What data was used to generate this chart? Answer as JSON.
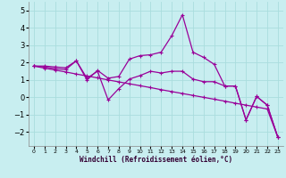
{
  "xlabel": "Windchill (Refroidissement éolien,°C)",
  "background_color": "#c8eef0",
  "line_color": "#990099",
  "grid_color": "#aadddd",
  "xlim": [
    -0.5,
    23.5
  ],
  "ylim": [
    -2.8,
    5.5
  ],
  "xticks": [
    0,
    1,
    2,
    3,
    4,
    5,
    6,
    7,
    8,
    9,
    10,
    11,
    12,
    13,
    14,
    15,
    16,
    17,
    18,
    19,
    20,
    21,
    22,
    23
  ],
  "yticks": [
    -2,
    -1,
    0,
    1,
    2,
    3,
    4,
    5
  ],
  "line1_x": [
    0,
    1,
    2,
    3,
    4,
    5,
    6,
    7,
    8,
    9,
    10,
    11,
    12,
    13,
    14,
    15,
    16,
    17,
    18,
    19,
    20,
    21,
    22,
    23
  ],
  "line1_y": [
    1.8,
    1.8,
    1.75,
    1.7,
    2.1,
    1.0,
    1.55,
    1.1,
    1.2,
    2.2,
    2.4,
    2.45,
    2.6,
    3.55,
    4.75,
    2.6,
    2.3,
    1.9,
    0.65,
    0.65,
    -1.3,
    0.05,
    -0.45,
    -2.3
  ],
  "line2_x": [
    0,
    1,
    2,
    3,
    4,
    5,
    6,
    7,
    8,
    9,
    10,
    11,
    12,
    13,
    14,
    15,
    16,
    17,
    18,
    19,
    20,
    21,
    22,
    23
  ],
  "line2_y": [
    1.8,
    1.75,
    1.65,
    1.6,
    2.1,
    1.1,
    1.5,
    -0.15,
    0.5,
    1.05,
    1.25,
    1.5,
    1.4,
    1.5,
    1.5,
    1.05,
    0.9,
    0.9,
    0.65,
    0.65,
    -1.3,
    0.05,
    -0.45,
    -2.3
  ],
  "line3_x": [
    0,
    1,
    2,
    3,
    4,
    5,
    6,
    7,
    8,
    9,
    10,
    11,
    12,
    13,
    14,
    15,
    16,
    17,
    18,
    19,
    20,
    21,
    22,
    23
  ],
  "line3_y": [
    1.8,
    1.68,
    1.57,
    1.46,
    1.34,
    1.23,
    1.12,
    1.0,
    0.89,
    0.78,
    0.67,
    0.56,
    0.44,
    0.33,
    0.22,
    0.11,
    0.0,
    -0.11,
    -0.22,
    -0.34,
    -0.45,
    -0.56,
    -0.67,
    -2.3
  ]
}
